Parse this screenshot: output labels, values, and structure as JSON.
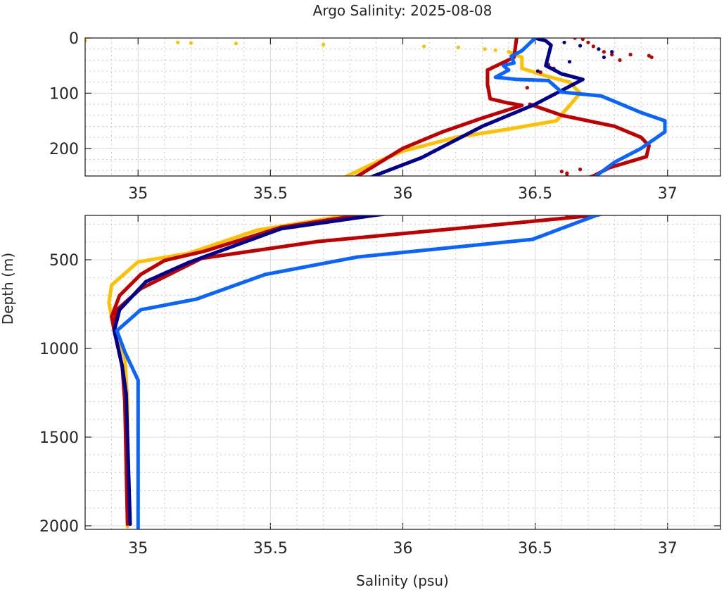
{
  "chart_data": {
    "type": "scatter",
    "title": "Argo Salinity: 2025-08-08",
    "xlabel": "Salinity (psu)",
    "ylabel": "Depth (m)",
    "grid": true,
    "legend": "none",
    "panels": [
      {
        "name": "upper",
        "xlim": [
          34.8,
          37.2
        ],
        "ylim": [
          0,
          250
        ],
        "y_reversed": true,
        "xticks": [
          35,
          35.5,
          36,
          36.5,
          37
        ],
        "xtick_labels": [
          "35",
          "35.5",
          "36",
          "36.5",
          "37"
        ],
        "yticks": [
          0,
          100,
          200
        ],
        "ytick_labels": [
          "0",
          "100",
          "200"
        ],
        "x_minor": 0.1,
        "y_minor": 20
      },
      {
        "name": "lower",
        "xlim": [
          34.8,
          37.2
        ],
        "ylim": [
          250,
          2020
        ],
        "y_reversed": true,
        "xticks": [
          35,
          35.5,
          36,
          36.5,
          37
        ],
        "xtick_labels": [
          "35",
          "35.5",
          "36",
          "36.5",
          "37"
        ],
        "yticks": [
          500,
          1000,
          1500,
          2000
        ],
        "ytick_labels": [
          "500",
          "1000",
          "1500",
          "2000"
        ],
        "x_minor": 0.1,
        "y_minor": 100
      }
    ],
    "series": [
      {
        "name": "float-yellow",
        "color": "#FFC000",
        "profile": [
          [
            36.4,
            25
          ],
          [
            36.45,
            35
          ],
          [
            36.45,
            55
          ],
          [
            36.55,
            70
          ],
          [
            36.63,
            80
          ],
          [
            36.67,
            100
          ],
          [
            36.58,
            150
          ],
          [
            36.4,
            165
          ],
          [
            36.2,
            180
          ],
          [
            36.0,
            205
          ],
          [
            35.9,
            225
          ],
          [
            35.79,
            250
          ],
          [
            35.45,
            333
          ],
          [
            35.19,
            464
          ],
          [
            35.0,
            512
          ],
          [
            34.9,
            643
          ],
          [
            34.89,
            742
          ],
          [
            34.91,
            900
          ],
          [
            34.95,
            1050
          ],
          [
            34.96,
            1300
          ],
          [
            34.96,
            2005
          ]
        ],
        "points": [
          [
            34.8,
            5
          ],
          [
            35.15,
            8
          ],
          [
            35.2,
            9
          ],
          [
            35.37,
            10
          ],
          [
            35.7,
            12
          ],
          [
            36.08,
            15
          ],
          [
            36.21,
            17
          ],
          [
            36.31,
            20
          ],
          [
            36.35,
            22
          ]
        ]
      },
      {
        "name": "float-red",
        "color": "#C00000",
        "profile": [
          [
            36.43,
            0
          ],
          [
            36.42,
            35
          ],
          [
            36.32,
            58
          ],
          [
            36.32,
            84
          ],
          [
            36.33,
            110
          ],
          [
            36.39,
            117
          ],
          [
            36.45,
            122
          ],
          [
            36.3,
            145
          ],
          [
            36.15,
            170
          ],
          [
            36.0,
            200
          ],
          [
            35.83,
            250
          ],
          [
            35.54,
            317
          ],
          [
            35.25,
            452
          ],
          [
            35.1,
            504
          ],
          [
            35.01,
            583
          ],
          [
            34.93,
            702
          ],
          [
            34.9,
            821
          ],
          [
            34.91,
            900
          ],
          [
            34.94,
            1100
          ],
          [
            34.95,
            1300
          ],
          [
            34.96,
            1990
          ]
        ],
        "points": []
      },
      {
        "name": "float-red-2",
        "color": "#C00000",
        "profile": [
          [
            36.48,
            120
          ],
          [
            36.6,
            140
          ],
          [
            36.8,
            160
          ],
          [
            36.9,
            180
          ],
          [
            36.93,
            195
          ],
          [
            36.92,
            215
          ],
          [
            36.78,
            235
          ],
          [
            36.72,
            250
          ],
          [
            36.33,
            306
          ],
          [
            35.68,
            397
          ],
          [
            35.24,
            492
          ],
          [
            35.01,
            663
          ],
          [
            34.92,
            782
          ],
          [
            34.91,
            860
          ]
        ],
        "points": [
          [
            36.65,
            0
          ],
          [
            36.68,
            2
          ],
          [
            36.7,
            8
          ],
          [
            36.72,
            15
          ],
          [
            36.76,
            25
          ],
          [
            36.79,
            30
          ],
          [
            36.86,
            30
          ],
          [
            36.93,
            32
          ],
          [
            36.94,
            35
          ],
          [
            36.82,
            40
          ],
          [
            36.52,
            62
          ],
          [
            36.57,
            55
          ],
          [
            36.55,
            48
          ],
          [
            36.47,
            90
          ],
          [
            36.6,
            242
          ],
          [
            36.62,
            245
          ],
          [
            36.62,
            250
          ],
          [
            36.67,
            238
          ]
        ]
      },
      {
        "name": "float-navy",
        "color": "#000090",
        "profile": [
          [
            36.5,
            0
          ],
          [
            36.54,
            5
          ],
          [
            36.56,
            13
          ],
          [
            36.54,
            50
          ],
          [
            36.6,
            65
          ],
          [
            36.68,
            75
          ],
          [
            36.5,
            120
          ],
          [
            36.3,
            160
          ],
          [
            36.07,
            217
          ],
          [
            35.89,
            250
          ],
          [
            35.54,
            325
          ],
          [
            35.19,
            516
          ],
          [
            35.03,
            623
          ],
          [
            34.93,
            782
          ],
          [
            34.91,
            900
          ],
          [
            34.94,
            1100
          ],
          [
            34.955,
            1258
          ],
          [
            34.96,
            1496
          ],
          [
            34.97,
            1990
          ]
        ],
        "points": [
          [
            36.61,
            8
          ],
          [
            36.67,
            14
          ],
          [
            36.74,
            20
          ],
          [
            36.79,
            25
          ],
          [
            36.76,
            35
          ],
          [
            36.63,
            43
          ],
          [
            36.55,
            52
          ],
          [
            36.51,
            60
          ]
        ]
      },
      {
        "name": "float-blue",
        "color": "#0A64FF",
        "profile": [
          [
            36.5,
            0
          ],
          [
            36.45,
            23
          ],
          [
            36.41,
            33
          ],
          [
            36.42,
            45
          ],
          [
            36.38,
            50
          ],
          [
            36.4,
            58
          ],
          [
            36.35,
            71
          ],
          [
            36.43,
            75
          ],
          [
            36.55,
            77
          ],
          [
            36.6,
            98
          ],
          [
            36.75,
            105
          ],
          [
            36.9,
            135
          ],
          [
            36.99,
            150
          ],
          [
            36.99,
            170
          ],
          [
            36.9,
            200
          ],
          [
            36.8,
            225
          ],
          [
            36.73,
            250
          ],
          [
            36.49,
            385
          ],
          [
            35.83,
            484
          ],
          [
            35.48,
            583
          ],
          [
            35.22,
            722
          ],
          [
            35.01,
            782
          ],
          [
            34.92,
            900
          ],
          [
            34.95,
            1020
          ],
          [
            35.0,
            1179
          ],
          [
            35.0,
            1417
          ],
          [
            35.0,
            2020
          ]
        ],
        "points": []
      }
    ]
  }
}
